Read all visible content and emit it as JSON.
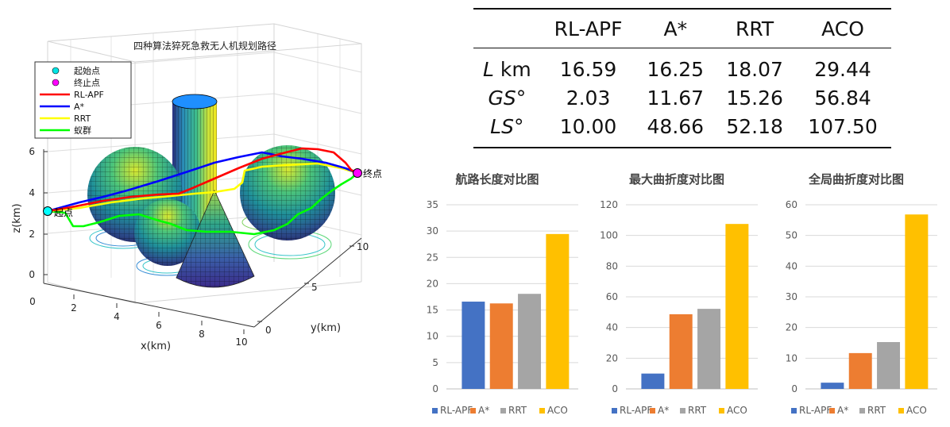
{
  "colors": {
    "rl_apf": "#4472C4",
    "a_star": "#ED7D31",
    "rrt": "#A5A5A5",
    "aco": "#FFC000",
    "path_rl_apf": "#ff0000",
    "path_a_star": "#0000ff",
    "path_rrt": "#ffff00",
    "path_ant": "#00ff00",
    "start_marker": "#00ffff",
    "end_marker": "#ff00ff"
  },
  "plot3d": {
    "title": "四种算法猝死急救无人机规划路径",
    "legend": [
      {
        "label": "起始点",
        "type": "marker",
        "color": "#00e5e5"
      },
      {
        "label": "终止点",
        "type": "marker",
        "color": "#ff00ff"
      },
      {
        "label": "RL-APF",
        "type": "line",
        "color": "#ff0000"
      },
      {
        "label": "A*",
        "type": "line",
        "color": "#0000ff"
      },
      {
        "label": "RRT",
        "type": "line",
        "color": "#ffff00"
      },
      {
        "label": "蚁群",
        "type": "line",
        "color": "#00ff00"
      }
    ],
    "start_label": "起点",
    "end_label": "终点",
    "xlabel": "x(km)",
    "ylabel": "y(km)",
    "zlabel": "z(km)",
    "x_ticks": [
      "0",
      "2",
      "4",
      "6",
      "8",
      "10"
    ],
    "y_ticks": [
      "0",
      "5",
      "10"
    ],
    "z_ticks": [
      "0",
      "2",
      "4",
      "6"
    ]
  },
  "table": {
    "columns": [
      "RL-APF",
      "A*",
      "RRT",
      "ACO"
    ],
    "rows": [
      {
        "label": "L",
        "unit": " km",
        "values": [
          "16.59",
          "16.25",
          "18.07",
          "29.44"
        ]
      },
      {
        "label": "GS",
        "unit": "°",
        "values": [
          "2.03",
          "11.67",
          "15.26",
          "56.84"
        ]
      },
      {
        "label": "LS",
        "unit": "°",
        "values": [
          "10.00",
          "48.66",
          "52.18",
          "107.50"
        ]
      }
    ]
  },
  "chart_data": [
    {
      "type": "bar",
      "title": "航路长度对比图",
      "categories": [
        "RL-APF",
        "A*",
        "RRT",
        "ACO"
      ],
      "values": [
        16.59,
        16.25,
        18.07,
        29.44
      ],
      "ylim": [
        0,
        35
      ],
      "yticks": [
        0,
        5,
        10,
        15,
        20,
        25,
        30,
        35
      ],
      "grid": true,
      "legend": "bottom"
    },
    {
      "type": "bar",
      "title": "最大曲折度对比图",
      "categories": [
        "RL-APF",
        "A*",
        "RRT",
        "ACO"
      ],
      "values": [
        10.0,
        48.66,
        52.18,
        107.5
      ],
      "ylim": [
        0,
        120
      ],
      "yticks": [
        0,
        20,
        40,
        60,
        80,
        100,
        120
      ],
      "grid": true,
      "legend": "bottom"
    },
    {
      "type": "bar",
      "title": "全局曲折度对比图",
      "categories": [
        "RL-APF",
        "A*",
        "RRT",
        "ACO"
      ],
      "values": [
        2.03,
        11.67,
        15.26,
        56.84
      ],
      "ylim": [
        0,
        60
      ],
      "yticks": [
        0,
        10,
        20,
        30,
        40,
        50,
        60
      ],
      "grid": true,
      "legend": "bottom"
    }
  ]
}
